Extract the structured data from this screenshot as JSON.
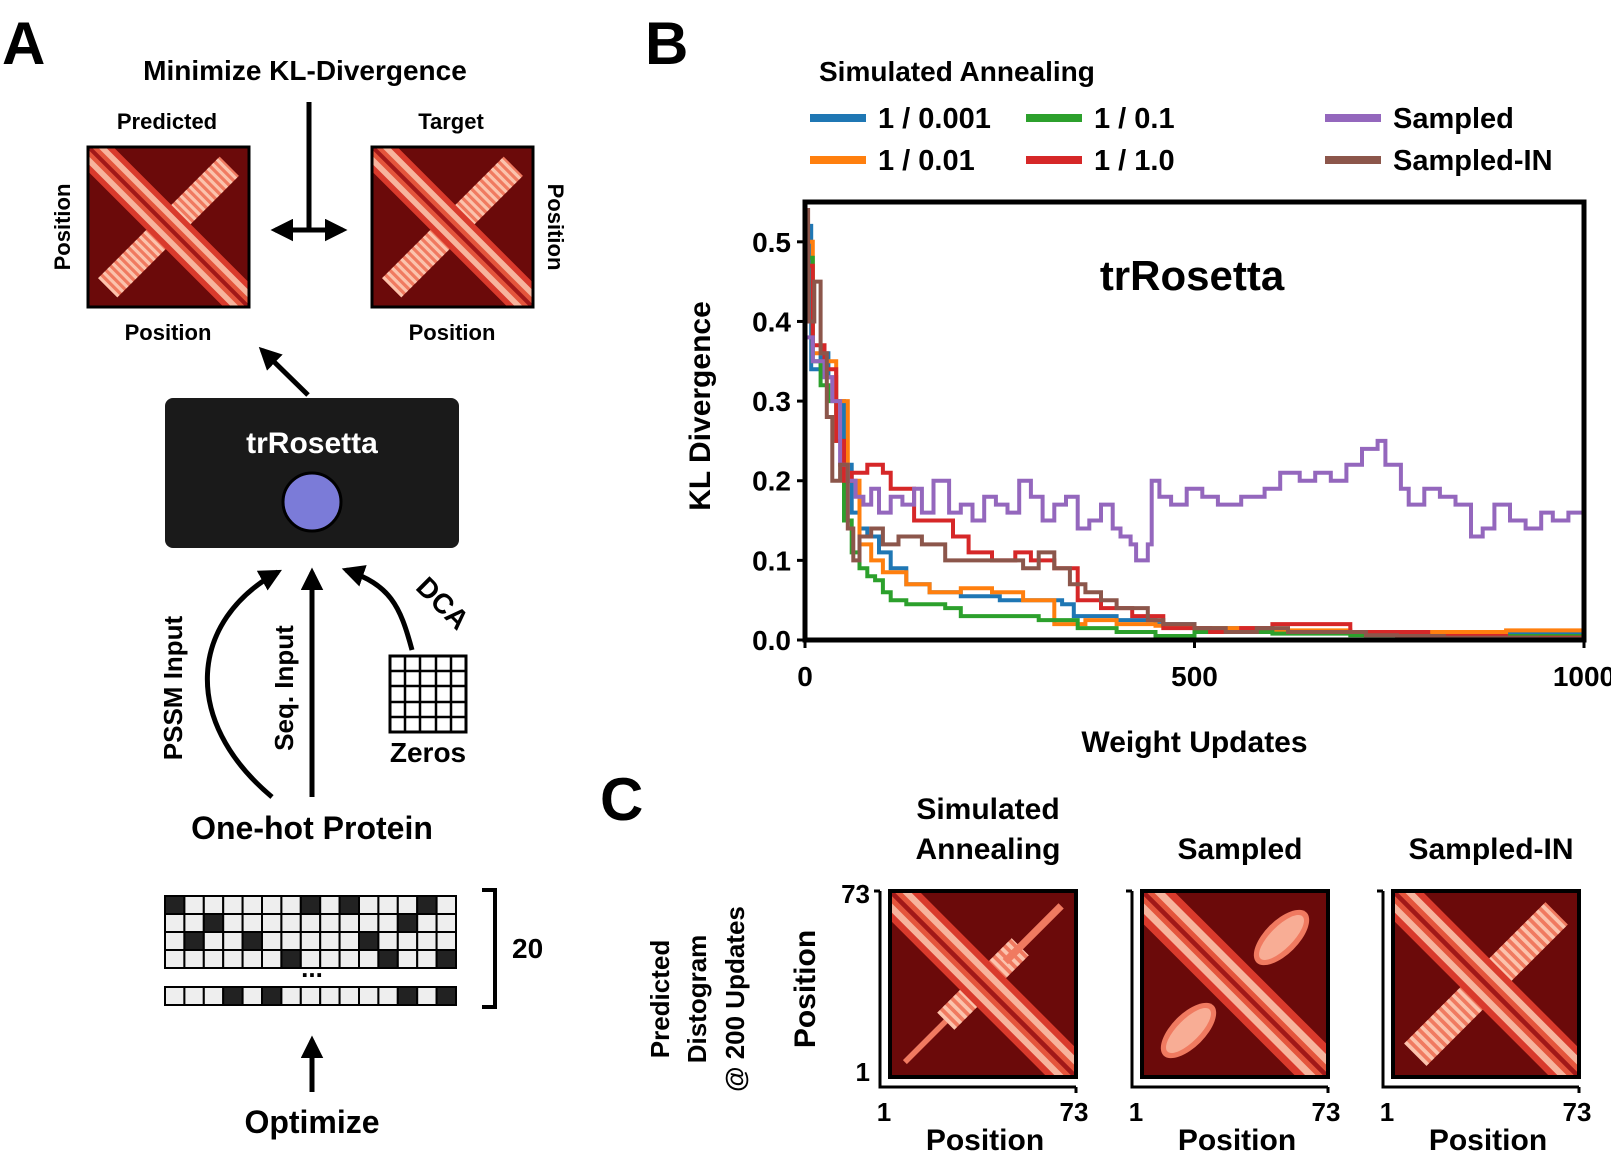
{
  "panel_a": {
    "letter": "A",
    "title": "Minimize KL-Divergence",
    "predicted_label": "Predicted",
    "target_label": "Target",
    "position_label": "Position",
    "model_label": "trRosetta",
    "pssm_label": "PSSM Input",
    "seq_label": "Seq. Input",
    "dca_label": "DCA",
    "zeros_label": "Zeros",
    "onehot_label": "One-hot Protein",
    "ellipsis": "...",
    "rows_count": "20",
    "optimize_label": "Optimize"
  },
  "panel_b": {
    "letter": "B",
    "legend_title": "Simulated Annealing",
    "x_ticks": [
      "0",
      "500",
      "1000"
    ],
    "y_ticks": [
      "0.0",
      "0.1",
      "0.2",
      "0.3",
      "0.4",
      "0.5"
    ]
  },
  "chart_data": {
    "type": "line",
    "title": "trRosetta",
    "xlabel": "Weight Updates",
    "ylabel": "KL Divergence",
    "xlim": [
      0,
      1000
    ],
    "ylim": [
      0,
      0.55
    ],
    "legend_position": "top",
    "series": [
      {
        "name": "1 / 0.001",
        "color": "#1f77b4",
        "points": [
          [
            0,
            0.52
          ],
          [
            8,
            0.34
          ],
          [
            20,
            0.36
          ],
          [
            30,
            0.33
          ],
          [
            40,
            0.3
          ],
          [
            50,
            0.22
          ],
          [
            60,
            0.16
          ],
          [
            70,
            0.14
          ],
          [
            80,
            0.13
          ],
          [
            95,
            0.11
          ],
          [
            110,
            0.09
          ],
          [
            130,
            0.07
          ],
          [
            160,
            0.06
          ],
          [
            200,
            0.055
          ],
          [
            250,
            0.05
          ],
          [
            300,
            0.05
          ],
          [
            330,
            0.045
          ],
          [
            345,
            0.03
          ],
          [
            400,
            0.025
          ],
          [
            450,
            0.02
          ],
          [
            500,
            0.015
          ],
          [
            600,
            0.01
          ],
          [
            700,
            0.01
          ],
          [
            800,
            0.01
          ],
          [
            900,
            0.01
          ],
          [
            1000,
            0.012
          ]
        ]
      },
      {
        "name": "1 / 0.01",
        "color": "#ff7f0e",
        "points": [
          [
            0,
            0.5
          ],
          [
            10,
            0.36
          ],
          [
            25,
            0.35
          ],
          [
            40,
            0.3
          ],
          [
            55,
            0.2
          ],
          [
            70,
            0.12
          ],
          [
            85,
            0.1
          ],
          [
            100,
            0.085
          ],
          [
            130,
            0.07
          ],
          [
            160,
            0.06
          ],
          [
            200,
            0.065
          ],
          [
            240,
            0.06
          ],
          [
            280,
            0.05
          ],
          [
            320,
            0.02
          ],
          [
            360,
            0.025
          ],
          [
            400,
            0.02
          ],
          [
            450,
            0.018
          ],
          [
            500,
            0.015
          ],
          [
            600,
            0.012
          ],
          [
            700,
            0.01
          ],
          [
            800,
            0.01
          ],
          [
            900,
            0.012
          ],
          [
            1000,
            0.014
          ]
        ]
      },
      {
        "name": "1 / 0.1",
        "color": "#2ca02c",
        "points": [
          [
            0,
            0.48
          ],
          [
            10,
            0.35
          ],
          [
            20,
            0.32
          ],
          [
            30,
            0.3
          ],
          [
            40,
            0.25
          ],
          [
            50,
            0.15
          ],
          [
            60,
            0.11
          ],
          [
            70,
            0.09
          ],
          [
            80,
            0.08
          ],
          [
            90,
            0.075
          ],
          [
            100,
            0.06
          ],
          [
            110,
            0.05
          ],
          [
            130,
            0.045
          ],
          [
            180,
            0.04
          ],
          [
            200,
            0.03
          ],
          [
            250,
            0.03
          ],
          [
            300,
            0.025
          ],
          [
            350,
            0.015
          ],
          [
            400,
            0.01
          ],
          [
            450,
            0.005
          ],
          [
            500,
            0.01
          ],
          [
            600,
            0.008
          ],
          [
            700,
            0.006
          ],
          [
            800,
            0.005
          ],
          [
            900,
            0.005
          ],
          [
            1000,
            0.005
          ]
        ]
      },
      {
        "name": "1 / 1.0",
        "color": "#d62728",
        "points": [
          [
            0,
            0.47
          ],
          [
            10,
            0.37
          ],
          [
            25,
            0.34
          ],
          [
            40,
            0.25
          ],
          [
            50,
            0.2
          ],
          [
            60,
            0.21
          ],
          [
            80,
            0.22
          ],
          [
            100,
            0.21
          ],
          [
            110,
            0.19
          ],
          [
            140,
            0.15
          ],
          [
            170,
            0.15
          ],
          [
            190,
            0.13
          ],
          [
            210,
            0.11
          ],
          [
            240,
            0.1
          ],
          [
            270,
            0.11
          ],
          [
            290,
            0.1
          ],
          [
            320,
            0.09
          ],
          [
            350,
            0.05
          ],
          [
            380,
            0.04
          ],
          [
            420,
            0.03
          ],
          [
            460,
            0.015
          ],
          [
            520,
            0.01
          ],
          [
            560,
            0.015
          ],
          [
            600,
            0.02
          ],
          [
            650,
            0.02
          ],
          [
            700,
            0.01
          ],
          [
            800,
            0.005
          ],
          [
            900,
            0.003
          ],
          [
            1000,
            0.002
          ]
        ]
      },
      {
        "name": "Sampled",
        "color": "#9467bd",
        "points": [
          [
            0,
            0.38
          ],
          [
            10,
            0.35
          ],
          [
            25,
            0.33
          ],
          [
            35,
            0.3
          ],
          [
            45,
            0.22
          ],
          [
            55,
            0.2
          ],
          [
            65,
            0.18
          ],
          [
            75,
            0.17
          ],
          [
            85,
            0.19
          ],
          [
            95,
            0.16
          ],
          [
            110,
            0.18
          ],
          [
            125,
            0.17
          ],
          [
            140,
            0.19
          ],
          [
            150,
            0.16
          ],
          [
            165,
            0.2
          ],
          [
            185,
            0.16
          ],
          [
            200,
            0.17
          ],
          [
            215,
            0.15
          ],
          [
            230,
            0.18
          ],
          [
            245,
            0.17
          ],
          [
            260,
            0.16
          ],
          [
            275,
            0.2
          ],
          [
            290,
            0.18
          ],
          [
            305,
            0.15
          ],
          [
            320,
            0.17
          ],
          [
            335,
            0.18
          ],
          [
            350,
            0.14
          ],
          [
            365,
            0.15
          ],
          [
            380,
            0.17
          ],
          [
            395,
            0.14
          ],
          [
            405,
            0.13
          ],
          [
            418,
            0.12
          ],
          [
            425,
            0.1
          ],
          [
            440,
            0.12
          ],
          [
            445,
            0.2
          ],
          [
            455,
            0.18
          ],
          [
            470,
            0.17
          ],
          [
            490,
            0.19
          ],
          [
            510,
            0.18
          ],
          [
            530,
            0.17
          ],
          [
            560,
            0.18
          ],
          [
            590,
            0.19
          ],
          [
            610,
            0.21
          ],
          [
            635,
            0.2
          ],
          [
            655,
            0.21
          ],
          [
            675,
            0.2
          ],
          [
            695,
            0.22
          ],
          [
            715,
            0.24
          ],
          [
            735,
            0.25
          ],
          [
            745,
            0.22
          ],
          [
            765,
            0.19
          ],
          [
            775,
            0.17
          ],
          [
            795,
            0.19
          ],
          [
            815,
            0.18
          ],
          [
            835,
            0.17
          ],
          [
            855,
            0.13
          ],
          [
            870,
            0.14
          ],
          [
            885,
            0.17
          ],
          [
            905,
            0.15
          ],
          [
            925,
            0.14
          ],
          [
            945,
            0.16
          ],
          [
            960,
            0.15
          ],
          [
            980,
            0.16
          ],
          [
            1000,
            0.15
          ]
        ]
      },
      {
        "name": "Sampled-IN",
        "color": "#8c564b",
        "points": [
          [
            0,
            0.54
          ],
          [
            4,
            0.4
          ],
          [
            12,
            0.45
          ],
          [
            20,
            0.36
          ],
          [
            28,
            0.28
          ],
          [
            35,
            0.2
          ],
          [
            45,
            0.22
          ],
          [
            55,
            0.14
          ],
          [
            62,
            0.1
          ],
          [
            70,
            0.13
          ],
          [
            85,
            0.14
          ],
          [
            100,
            0.12
          ],
          [
            120,
            0.13
          ],
          [
            150,
            0.12
          ],
          [
            180,
            0.1
          ],
          [
            210,
            0.1
          ],
          [
            240,
            0.1
          ],
          [
            265,
            0.1
          ],
          [
            280,
            0.09
          ],
          [
            300,
            0.11
          ],
          [
            320,
            0.09
          ],
          [
            340,
            0.07
          ],
          [
            360,
            0.06
          ],
          [
            380,
            0.05
          ],
          [
            400,
            0.04
          ],
          [
            420,
            0.04
          ],
          [
            440,
            0.025
          ],
          [
            460,
            0.02
          ],
          [
            500,
            0.015
          ],
          [
            540,
            0.01
          ],
          [
            580,
            0.015
          ],
          [
            620,
            0.01
          ],
          [
            680,
            0.01
          ],
          [
            720,
            0.006
          ],
          [
            760,
            0.005
          ],
          [
            820,
            0.003
          ],
          [
            880,
            0.003
          ],
          [
            940,
            0.002
          ],
          [
            1000,
            0.002
          ]
        ]
      }
    ]
  },
  "panel_c": {
    "letter": "C",
    "ylabel_lines": [
      "Predicted",
      "Distogram",
      "@ 200 Updates"
    ],
    "position_label": "Position",
    "tick_min": "1",
    "tick_max": "73",
    "maps": [
      {
        "title_lines": [
          "Simulated",
          "Annealing"
        ]
      },
      {
        "title_lines": [
          "Sampled"
        ]
      },
      {
        "title_lines": [
          "Sampled-IN"
        ]
      }
    ]
  }
}
